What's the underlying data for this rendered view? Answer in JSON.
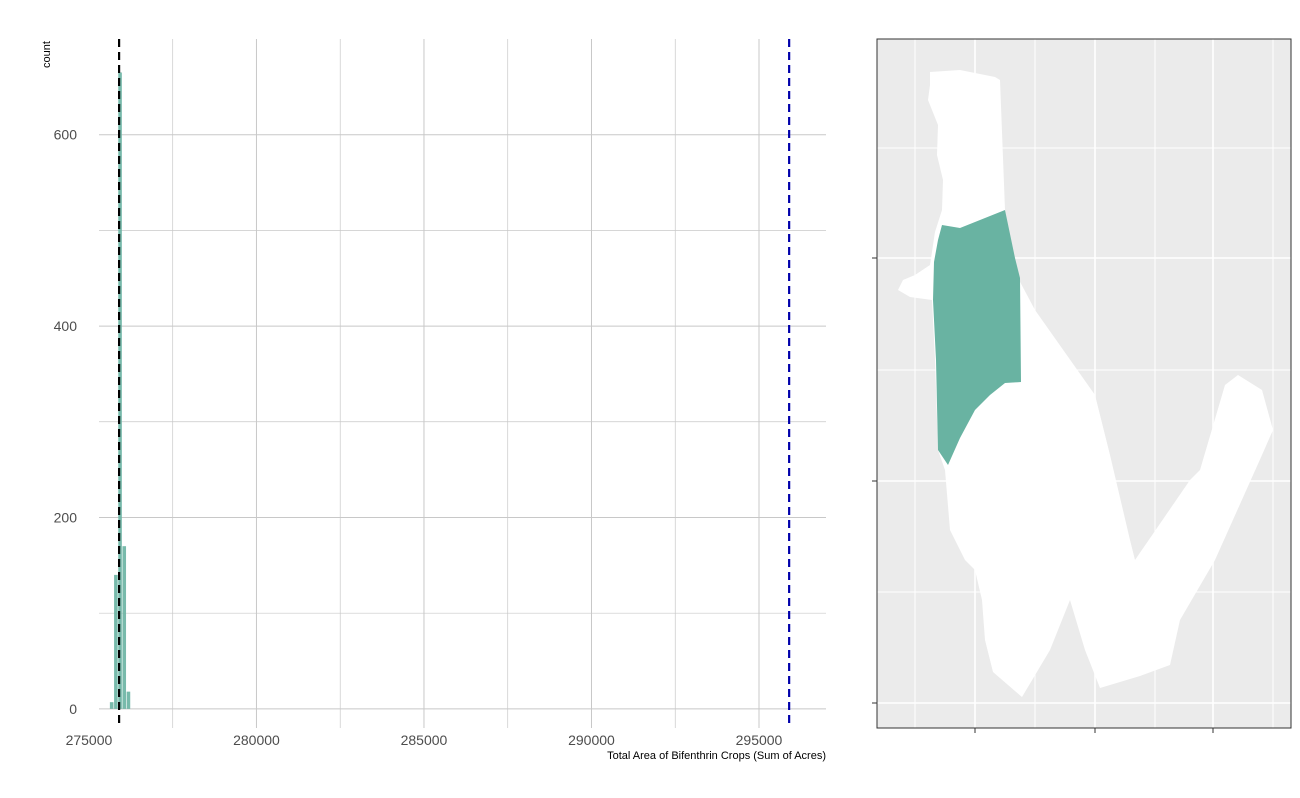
{
  "colors": {
    "bar": "#69b3a2",
    "grid": "#c8c8c8",
    "observed_line": "#000000",
    "reference_line": "#0000aa",
    "map_background": "#ebebeb",
    "map_grid": "#ffffff",
    "map_land": "#ffffff",
    "map_highlight": "#69b3a2"
  },
  "chart_data": [
    {
      "type": "bar",
      "subtype": "histogram",
      "title": "",
      "xlabel": "Total Area of Bifenthrin Crops (Sum of Acres)",
      "ylabel": "count",
      "xlim": [
        275300,
        297000
      ],
      "ylim": [
        -20,
        700
      ],
      "x_ticks": [
        275000,
        280000,
        285000,
        290000,
        295000
      ],
      "x_tick_labels": [
        "275000",
        "280000",
        "285000",
        "290000",
        "295000"
      ],
      "y_ticks": [
        0,
        200,
        400,
        600
      ],
      "y_tick_labels": [
        "0",
        "200",
        "400",
        "600"
      ],
      "grid": true,
      "legend": "none",
      "bin_width": 125,
      "bins": [
        {
          "x0": 275625,
          "x1": 275750,
          "count": 7
        },
        {
          "x0": 275750,
          "x1": 275875,
          "count": 140
        },
        {
          "x0": 275875,
          "x1": 276000,
          "count": 665
        },
        {
          "x0": 276000,
          "x1": 276125,
          "count": 170
        },
        {
          "x0": 276125,
          "x1": 276250,
          "count": 18
        }
      ],
      "vertical_lines": [
        {
          "x": 275900,
          "style": "dashed",
          "color": "#000000"
        },
        {
          "x": 295900,
          "style": "dashed",
          "color": "#0000aa"
        }
      ]
    },
    {
      "type": "map",
      "title": "",
      "axis_labels": "none",
      "grid": true,
      "highlighted_regions": 1
    }
  ]
}
